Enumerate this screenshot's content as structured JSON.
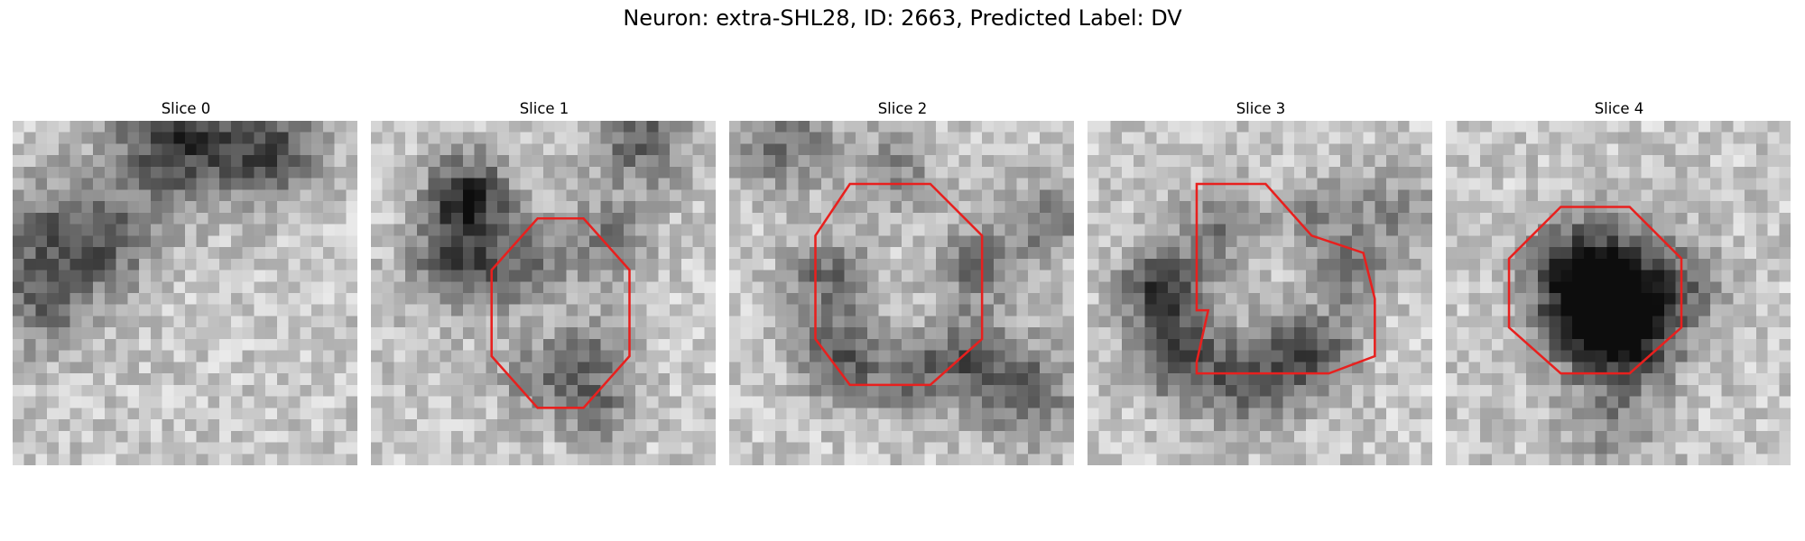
{
  "figure": {
    "title": "Neuron: extra-SHL28, ID: 2663, Predicted Label: DV"
  },
  "panels": [
    {
      "title": "Slice 0",
      "has_roi": false
    },
    {
      "title": "Slice 1",
      "has_roi": true
    },
    {
      "title": "Slice 2",
      "has_roi": true
    },
    {
      "title": "Slice 3",
      "has_roi": true
    },
    {
      "title": "Slice 4",
      "has_roi": true
    }
  ],
  "colors": {
    "roi_outline": "#e8201e",
    "background": "#ffffff"
  }
}
